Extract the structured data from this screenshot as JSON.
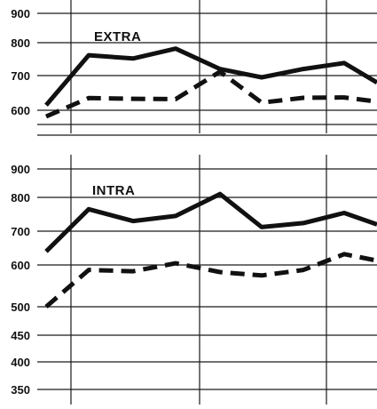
{
  "chart_data": [
    {
      "type": "line",
      "title": "EXTRA",
      "x": [
        1,
        2,
        3,
        4,
        5,
        6,
        7,
        8,
        9
      ],
      "yticks": [
        600,
        700,
        800,
        900
      ],
      "ylim": [
        570,
        930
      ],
      "grid": true,
      "series": [
        {
          "style": "solid",
          "values": [
            615,
            762,
            752,
            782,
            720,
            695,
            720,
            738,
            680
          ]
        },
        {
          "style": "dashed",
          "values": [
            582,
            635,
            633,
            632,
            712,
            622,
            636,
            637,
            625
          ]
        }
      ]
    },
    {
      "type": "line",
      "title": "INTRA",
      "x": [
        1,
        2,
        3,
        4,
        5,
        6,
        7,
        8,
        9
      ],
      "yticks": [
        350,
        400,
        450,
        500,
        600,
        700,
        800,
        900
      ],
      "ylim": [
        340,
        920
      ],
      "grid": true,
      "series": [
        {
          "style": "solid",
          "values": [
            640,
            765,
            730,
            745,
            812,
            712,
            724,
            754,
            720
          ]
        },
        {
          "style": "dashed",
          "values": [
            500,
            588,
            585,
            605,
            583,
            575,
            588,
            632,
            613
          ]
        }
      ]
    }
  ]
}
